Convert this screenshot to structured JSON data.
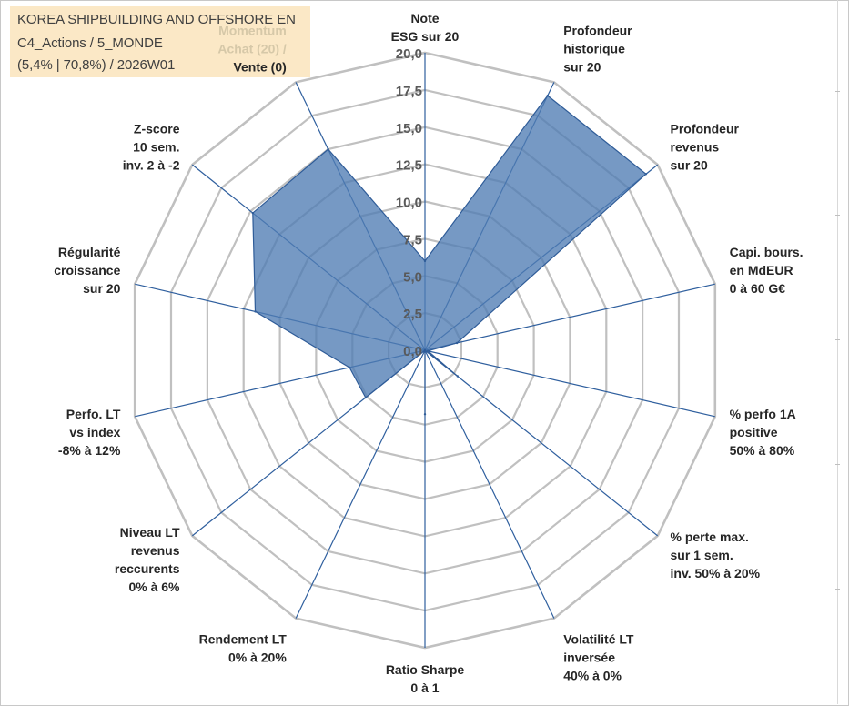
{
  "title": {
    "line1": "KOREA SHIPBUILDING AND OFFSHORE EN",
    "line2": "C4_Actions / 5_MONDE",
    "line3": "(5,4% | 70,8%) / 2026W01"
  },
  "colors": {
    "fill": "#4f7cb3",
    "outline": "#2f5c98",
    "grid": "#c0c0c0",
    "spoke": "#2f5f9e",
    "title_bg": "#fbe8c6"
  },
  "chart_data": {
    "type": "radar",
    "ylim": [
      0,
      20
    ],
    "ticks": [
      "0,0",
      "2,5",
      "5,0",
      "7,5",
      "10,0",
      "12,5",
      "15,0",
      "17,5",
      "20,0"
    ],
    "categories": [
      [
        "Note",
        "ESG sur 20"
      ],
      [
        "Profondeur",
        "historique",
        "sur 20"
      ],
      [
        "Profondeur",
        "revenus",
        "sur 20"
      ],
      [
        "Capi. bours.",
        "en MdEUR",
        "0 à 60 G€"
      ],
      [
        "% perfo 1A",
        "positive",
        "50% à 80%"
      ],
      [
        "% perte max.",
        "sur 1 sem.",
        "inv. 50% à 20%"
      ],
      [
        "Volatilité LT",
        "inversée",
        "40% à 0%"
      ],
      [
        "Ratio Sharpe",
        "0 à 1"
      ],
      [
        "Rendement LT",
        "0% à 20%"
      ],
      [
        "Niveau LT",
        "revenus",
        "reccurents",
        "0% à 6%"
      ],
      [
        "Perfo. LT",
        "vs index",
        "-8% à 12%"
      ],
      [
        "Régularité",
        "croissance",
        "sur 20"
      ],
      [
        "Z-score",
        "10 sem.",
        "inv. 2 à -2"
      ],
      [
        "Momentum",
        "Achat (20) /",
        "Vente (0)"
      ]
    ],
    "series": [
      {
        "name": "KOREA SHIPBUILDING AND OFFSHORE EN",
        "values": [
          6,
          19,
          19,
          2.2,
          0.2,
          2.8,
          0,
          4.3,
          0,
          5.1,
          5.2,
          11.7,
          14.8,
          15.0
        ]
      }
    ]
  }
}
